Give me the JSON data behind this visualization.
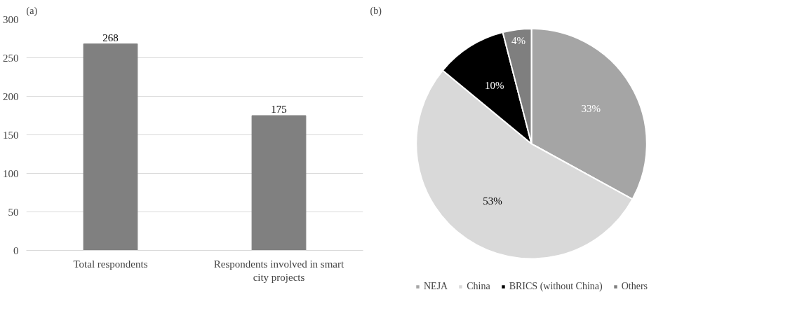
{
  "chart_data": [
    {
      "type": "bar",
      "title": "(a)",
      "categories": [
        "Total respondents",
        "Respondents involved in smart city projects"
      ],
      "values": [
        268,
        175
      ],
      "color": "#808080",
      "data_labels": true,
      "ylim": [
        0,
        300
      ],
      "yticks": [
        0,
        50,
        100,
        150,
        200,
        250,
        300
      ],
      "grid": "y"
    },
    {
      "type": "pie",
      "title": "(b)",
      "categories": [
        "NEJA",
        "China",
        "BRICS (without China)",
        "Others"
      ],
      "values": [
        33,
        53,
        10,
        4
      ],
      "colors": [
        "#a5a5a5",
        "#d9d9d9",
        "#000000",
        "#7f7f7f"
      ],
      "value_labels": [
        "33%",
        "53%",
        "10%",
        "4%"
      ],
      "legend": "bottom"
    }
  ]
}
